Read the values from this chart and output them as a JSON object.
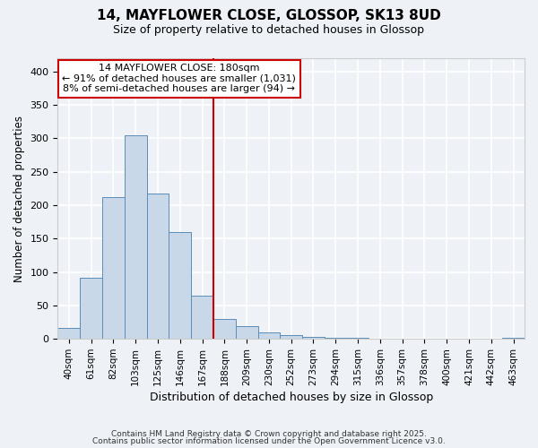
{
  "title": "14, MAYFLOWER CLOSE, GLOSSOP, SK13 8UD",
  "subtitle": "Size of property relative to detached houses in Glossop",
  "xlabel": "Distribution of detached houses by size in Glossop",
  "ylabel": "Number of detached properties",
  "bin_labels": [
    "40sqm",
    "61sqm",
    "82sqm",
    "103sqm",
    "125sqm",
    "146sqm",
    "167sqm",
    "188sqm",
    "209sqm",
    "230sqm",
    "252sqm",
    "273sqm",
    "294sqm",
    "315sqm",
    "336sqm",
    "357sqm",
    "378sqm",
    "400sqm",
    "421sqm",
    "442sqm",
    "463sqm"
  ],
  "bar_heights": [
    16,
    91,
    212,
    305,
    218,
    160,
    65,
    30,
    19,
    9,
    5,
    3,
    1,
    1,
    0,
    0,
    0,
    0,
    0,
    0,
    2
  ],
  "bar_color": "#c8d8e8",
  "bar_edge_color": "#5b8db8",
  "vline_x_index": 7,
  "vline_color": "#cc0000",
  "annotation_title": "14 MAYFLOWER CLOSE: 180sqm",
  "annotation_line1": "← 91% of detached houses are smaller (1,031)",
  "annotation_line2": "8% of semi-detached houses are larger (94) →",
  "annotation_box_color": "#ffffff",
  "annotation_box_edge": "#cc0000",
  "ylim": [
    0,
    420
  ],
  "yticks": [
    0,
    50,
    100,
    150,
    200,
    250,
    300,
    350,
    400
  ],
  "background_color": "#eef2f6",
  "grid_color": "#ffffff",
  "footer1": "Contains HM Land Registry data © Crown copyright and database right 2025.",
  "footer2": "Contains public sector information licensed under the Open Government Licence v3.0."
}
